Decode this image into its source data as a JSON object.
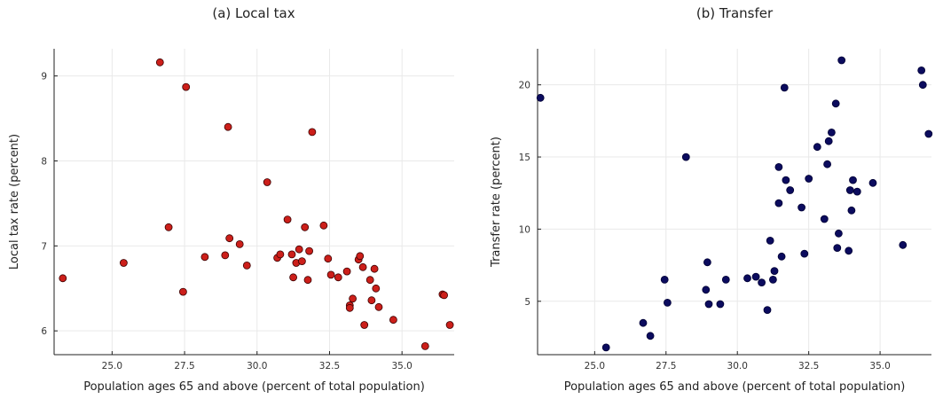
{
  "chart_data": [
    {
      "type": "scatter",
      "title": "(a) Local tax",
      "xlabel": "Population ages 65 and above (percent of total population)",
      "ylabel": "Local tax rate (percent)",
      "xlim": [
        23.0,
        36.8
      ],
      "ylim": [
        5.72,
        9.32
      ],
      "xticks": [
        "25.0",
        "27.5",
        "30.0",
        "32.5",
        "35.0"
      ],
      "yticks": [
        "6",
        "7",
        "8",
        "9"
      ],
      "grid": true,
      "marker_color": "#cc1f1a",
      "marker_edge": "#3a0000",
      "x": [
        23.3,
        25.4,
        26.65,
        26.95,
        27.45,
        27.55,
        28.2,
        28.9,
        29.0,
        29.05,
        29.4,
        29.65,
        30.35,
        30.7,
        30.8,
        31.05,
        31.2,
        31.25,
        31.35,
        31.45,
        31.55,
        31.65,
        31.75,
        31.8,
        31.9,
        32.3,
        32.45,
        32.55,
        32.8,
        33.1,
        33.2,
        33.2,
        33.3,
        33.5,
        33.55,
        33.65,
        33.7,
        33.9,
        33.95,
        34.05,
        34.1,
        34.2,
        34.7,
        35.8,
        36.4,
        36.45,
        36.65
      ],
      "y": [
        6.62,
        6.8,
        9.16,
        7.22,
        6.46,
        8.87,
        6.87,
        6.89,
        8.4,
        7.09,
        7.02,
        6.77,
        7.75,
        6.86,
        6.9,
        7.31,
        6.9,
        6.63,
        6.8,
        6.96,
        6.82,
        7.22,
        6.6,
        6.94,
        8.34,
        7.24,
        6.85,
        6.66,
        6.63,
        6.7,
        6.3,
        6.27,
        6.38,
        6.84,
        6.88,
        6.75,
        6.07,
        6.6,
        6.36,
        6.73,
        6.5,
        6.28,
        6.13,
        5.82,
        6.43,
        6.42,
        6.07
      ]
    },
    {
      "type": "scatter",
      "title": "(b) Transfer",
      "xlabel": "Population ages 65 and above (percent of total population)",
      "ylabel": "Transfer rate (percent)",
      "xlim": [
        23.0,
        36.8
      ],
      "ylim": [
        1.3,
        22.5
      ],
      "xticks": [
        "25.0",
        "27.5",
        "30.0",
        "32.5",
        "35.0"
      ],
      "yticks": [
        "5",
        "10",
        "15",
        "20"
      ],
      "grid": true,
      "marker_color": "#0b0b5e",
      "marker_edge": "#000033",
      "x": [
        23.1,
        25.4,
        26.7,
        26.95,
        27.45,
        27.55,
        28.2,
        28.9,
        28.95,
        29.0,
        29.4,
        29.6,
        30.35,
        30.65,
        30.85,
        31.05,
        31.15,
        31.25,
        31.3,
        31.45,
        31.45,
        31.55,
        31.65,
        31.7,
        31.85,
        32.25,
        32.35,
        32.5,
        32.8,
        33.05,
        33.15,
        33.2,
        33.3,
        33.45,
        33.5,
        33.55,
        33.65,
        33.9,
        33.95,
        34.0,
        34.05,
        34.2,
        34.75,
        35.8,
        36.45,
        36.5,
        36.7
      ],
      "y": [
        19.1,
        1.8,
        3.5,
        2.6,
        6.5,
        4.9,
        15.0,
        5.8,
        7.7,
        4.8,
        4.8,
        6.5,
        6.6,
        6.7,
        6.3,
        4.4,
        9.2,
        6.5,
        7.1,
        14.3,
        11.8,
        8.1,
        19.8,
        13.4,
        12.7,
        11.5,
        8.3,
        13.5,
        15.7,
        10.7,
        14.5,
        16.1,
        16.7,
        18.7,
        8.7,
        9.7,
        21.7,
        8.5,
        12.7,
        11.3,
        13.4,
        12.6,
        13.2,
        8.9,
        21.0,
        20.0,
        16.6
      ]
    }
  ]
}
